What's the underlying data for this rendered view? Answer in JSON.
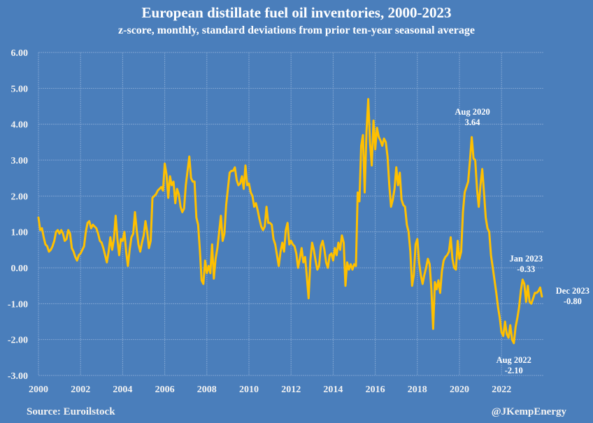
{
  "chart_data": {
    "type": "line",
    "title": "European distillate fuel oil inventories, 2000-2023",
    "subtitle": "z-score, monthly, standard deviations from prior ten-year seasonal average",
    "xlabel": "",
    "ylabel": "",
    "x_start": "Jan 2000",
    "x_end": "Dec 2023",
    "frequency": "monthly",
    "xlim": [
      2000,
      2024
    ],
    "ylim": [
      -3,
      6
    ],
    "grid": true,
    "legend": "none",
    "x_tick_labels": [
      "2000",
      "2002",
      "2004",
      "2006",
      "2008",
      "2010",
      "2012",
      "2014",
      "2016",
      "2018",
      "2020",
      "2022"
    ],
    "x_tick_values": [
      2000,
      2002,
      2004,
      2006,
      2008,
      2010,
      2012,
      2014,
      2016,
      2018,
      2020,
      2022
    ],
    "y_tick_labels": [
      "6.00",
      "5.00",
      "4.00",
      "3.00",
      "2.00",
      "1.00",
      "0.00",
      "-1.00",
      "-2.00",
      "-3.00"
    ],
    "y_tick_values": [
      6,
      5,
      4,
      3,
      2,
      1,
      0,
      -1,
      -2,
      -3
    ],
    "colors": {
      "background": "#4a7ebb",
      "line": "#ffc000",
      "grid": "#7ea3d1",
      "text": "#ffffff"
    },
    "series": [
      {
        "name": "European distillate fuel oil inventories z-score",
        "values": [
          1.4,
          1.05,
          1.1,
          0.85,
          0.65,
          0.6,
          0.45,
          0.5,
          0.6,
          0.75,
          1.0,
          1.05,
          0.95,
          1.05,
          0.95,
          0.75,
          0.8,
          1.05,
          0.95,
          0.55,
          0.45,
          0.3,
          0.2,
          0.35,
          0.4,
          0.5,
          0.6,
          1.0,
          1.25,
          1.3,
          1.1,
          1.2,
          1.15,
          1.1,
          0.95,
          0.75,
          0.7,
          0.55,
          0.35,
          0.15,
          0.45,
          0.85,
          0.5,
          0.8,
          1.45,
          0.8,
          0.35,
          0.8,
          0.75,
          1.0,
          0.45,
          0.05,
          0.5,
          0.85,
          0.95,
          1.55,
          1.05,
          0.65,
          0.45,
          0.7,
          0.9,
          1.3,
          1.0,
          0.55,
          0.75,
          1.95,
          2.0,
          2.05,
          2.15,
          2.2,
          2.25,
          2.15,
          2.9,
          2.6,
          1.95,
          2.55,
          2.3,
          2.4,
          1.8,
          2.2,
          2.05,
          1.7,
          1.55,
          1.65,
          2.3,
          2.7,
          3.1,
          2.5,
          2.4,
          2.4,
          1.4,
          1.2,
          0.5,
          -0.35,
          -0.45,
          0.2,
          -0.15,
          0.05,
          -0.15,
          0.65,
          -0.3,
          0.25,
          0.55,
          1.0,
          1.45,
          0.75,
          0.95,
          1.75,
          2.2,
          2.65,
          2.7,
          2.7,
          2.8,
          2.45,
          2.3,
          2.35,
          2.55,
          2.2,
          2.85,
          2.3,
          2.35,
          2.1,
          2.0,
          1.7,
          1.8,
          1.6,
          1.35,
          1.15,
          1.05,
          1.15,
          1.7,
          1.25,
          1.25,
          1.2,
          0.8,
          0.65,
          0.35,
          0.05,
          0.45,
          0.7,
          0.45,
          1.05,
          1.25,
          0.65,
          0.75,
          0.65,
          0.6,
          0.4,
          0.0,
          0.25,
          0.55,
          0.15,
          0.3,
          -0.25,
          -0.85,
          0.2,
          0.7,
          0.5,
          0.2,
          -0.05,
          0.05,
          0.6,
          0.75,
          0.5,
          0.15,
          0.0,
          0.35,
          0.4,
          0.2,
          0.55,
          0.35,
          0.7,
          0.5,
          0.9,
          0.7,
          -0.5,
          0.15,
          -0.05,
          0.1,
          -0.05,
          0.1,
          0.05,
          2.1,
          1.85,
          3.4,
          3.7,
          2.1,
          3.8,
          4.7,
          3.5,
          2.85,
          4.1,
          3.3,
          3.9,
          3.65,
          3.55,
          3.4,
          3.6,
          3.5,
          3.1,
          2.3,
          1.7,
          1.9,
          2.2,
          2.8,
          2.3,
          2.65,
          1.9,
          1.75,
          1.7,
          1.2,
          1.0,
          0.45,
          -0.5,
          -0.2,
          0.65,
          0.8,
          0.15,
          -0.2,
          -0.45,
          -0.2,
          0.0,
          0.25,
          0.1,
          -0.6,
          -1.7,
          -0.4,
          -0.6,
          -0.35,
          -0.7,
          -0.1,
          0.2,
          0.3,
          0.35,
          0.45,
          0.85,
          0.25,
          0.0,
          -0.05,
          0.75,
          0.25,
          0.45,
          1.55,
          2.1,
          2.25,
          2.4,
          3.0,
          3.64,
          3.05,
          3.0,
          2.2,
          1.7,
          2.3,
          2.75,
          2.1,
          1.4,
          1.1,
          1.0,
          0.35,
          0.0,
          -0.35,
          -0.7,
          -1.1,
          -1.4,
          -1.8,
          -1.9,
          -1.5,
          -1.85,
          -1.95,
          -1.6,
          -2.0,
          -2.1,
          -1.65,
          -1.4,
          -1.1,
          -0.65,
          -0.33,
          -0.45,
          -0.95,
          -0.5,
          -0.95,
          -1.0,
          -0.85,
          -0.7,
          -0.7,
          -0.65,
          -0.55,
          -0.8
        ]
      }
    ],
    "annotations": [
      {
        "label": "Aug 2020",
        "value_text": "3.64",
        "month": "Aug 2020",
        "value": 3.64,
        "position": "above"
      },
      {
        "label": "Aug 2022",
        "value_text": "-2.10",
        "month": "Aug 2022",
        "value": -2.1,
        "position": "below"
      },
      {
        "label": "Jan 2023",
        "value_text": "-0.33",
        "month": "Jan 2023",
        "value": -0.33,
        "position": "above"
      },
      {
        "label": "Dec 2023",
        "value_text": "-0.80",
        "month": "Dec 2023",
        "value": -0.8,
        "position": "right"
      }
    ]
  },
  "footer": {
    "source": "Source: Euroilstock",
    "credit": "@JKempEnergy"
  }
}
